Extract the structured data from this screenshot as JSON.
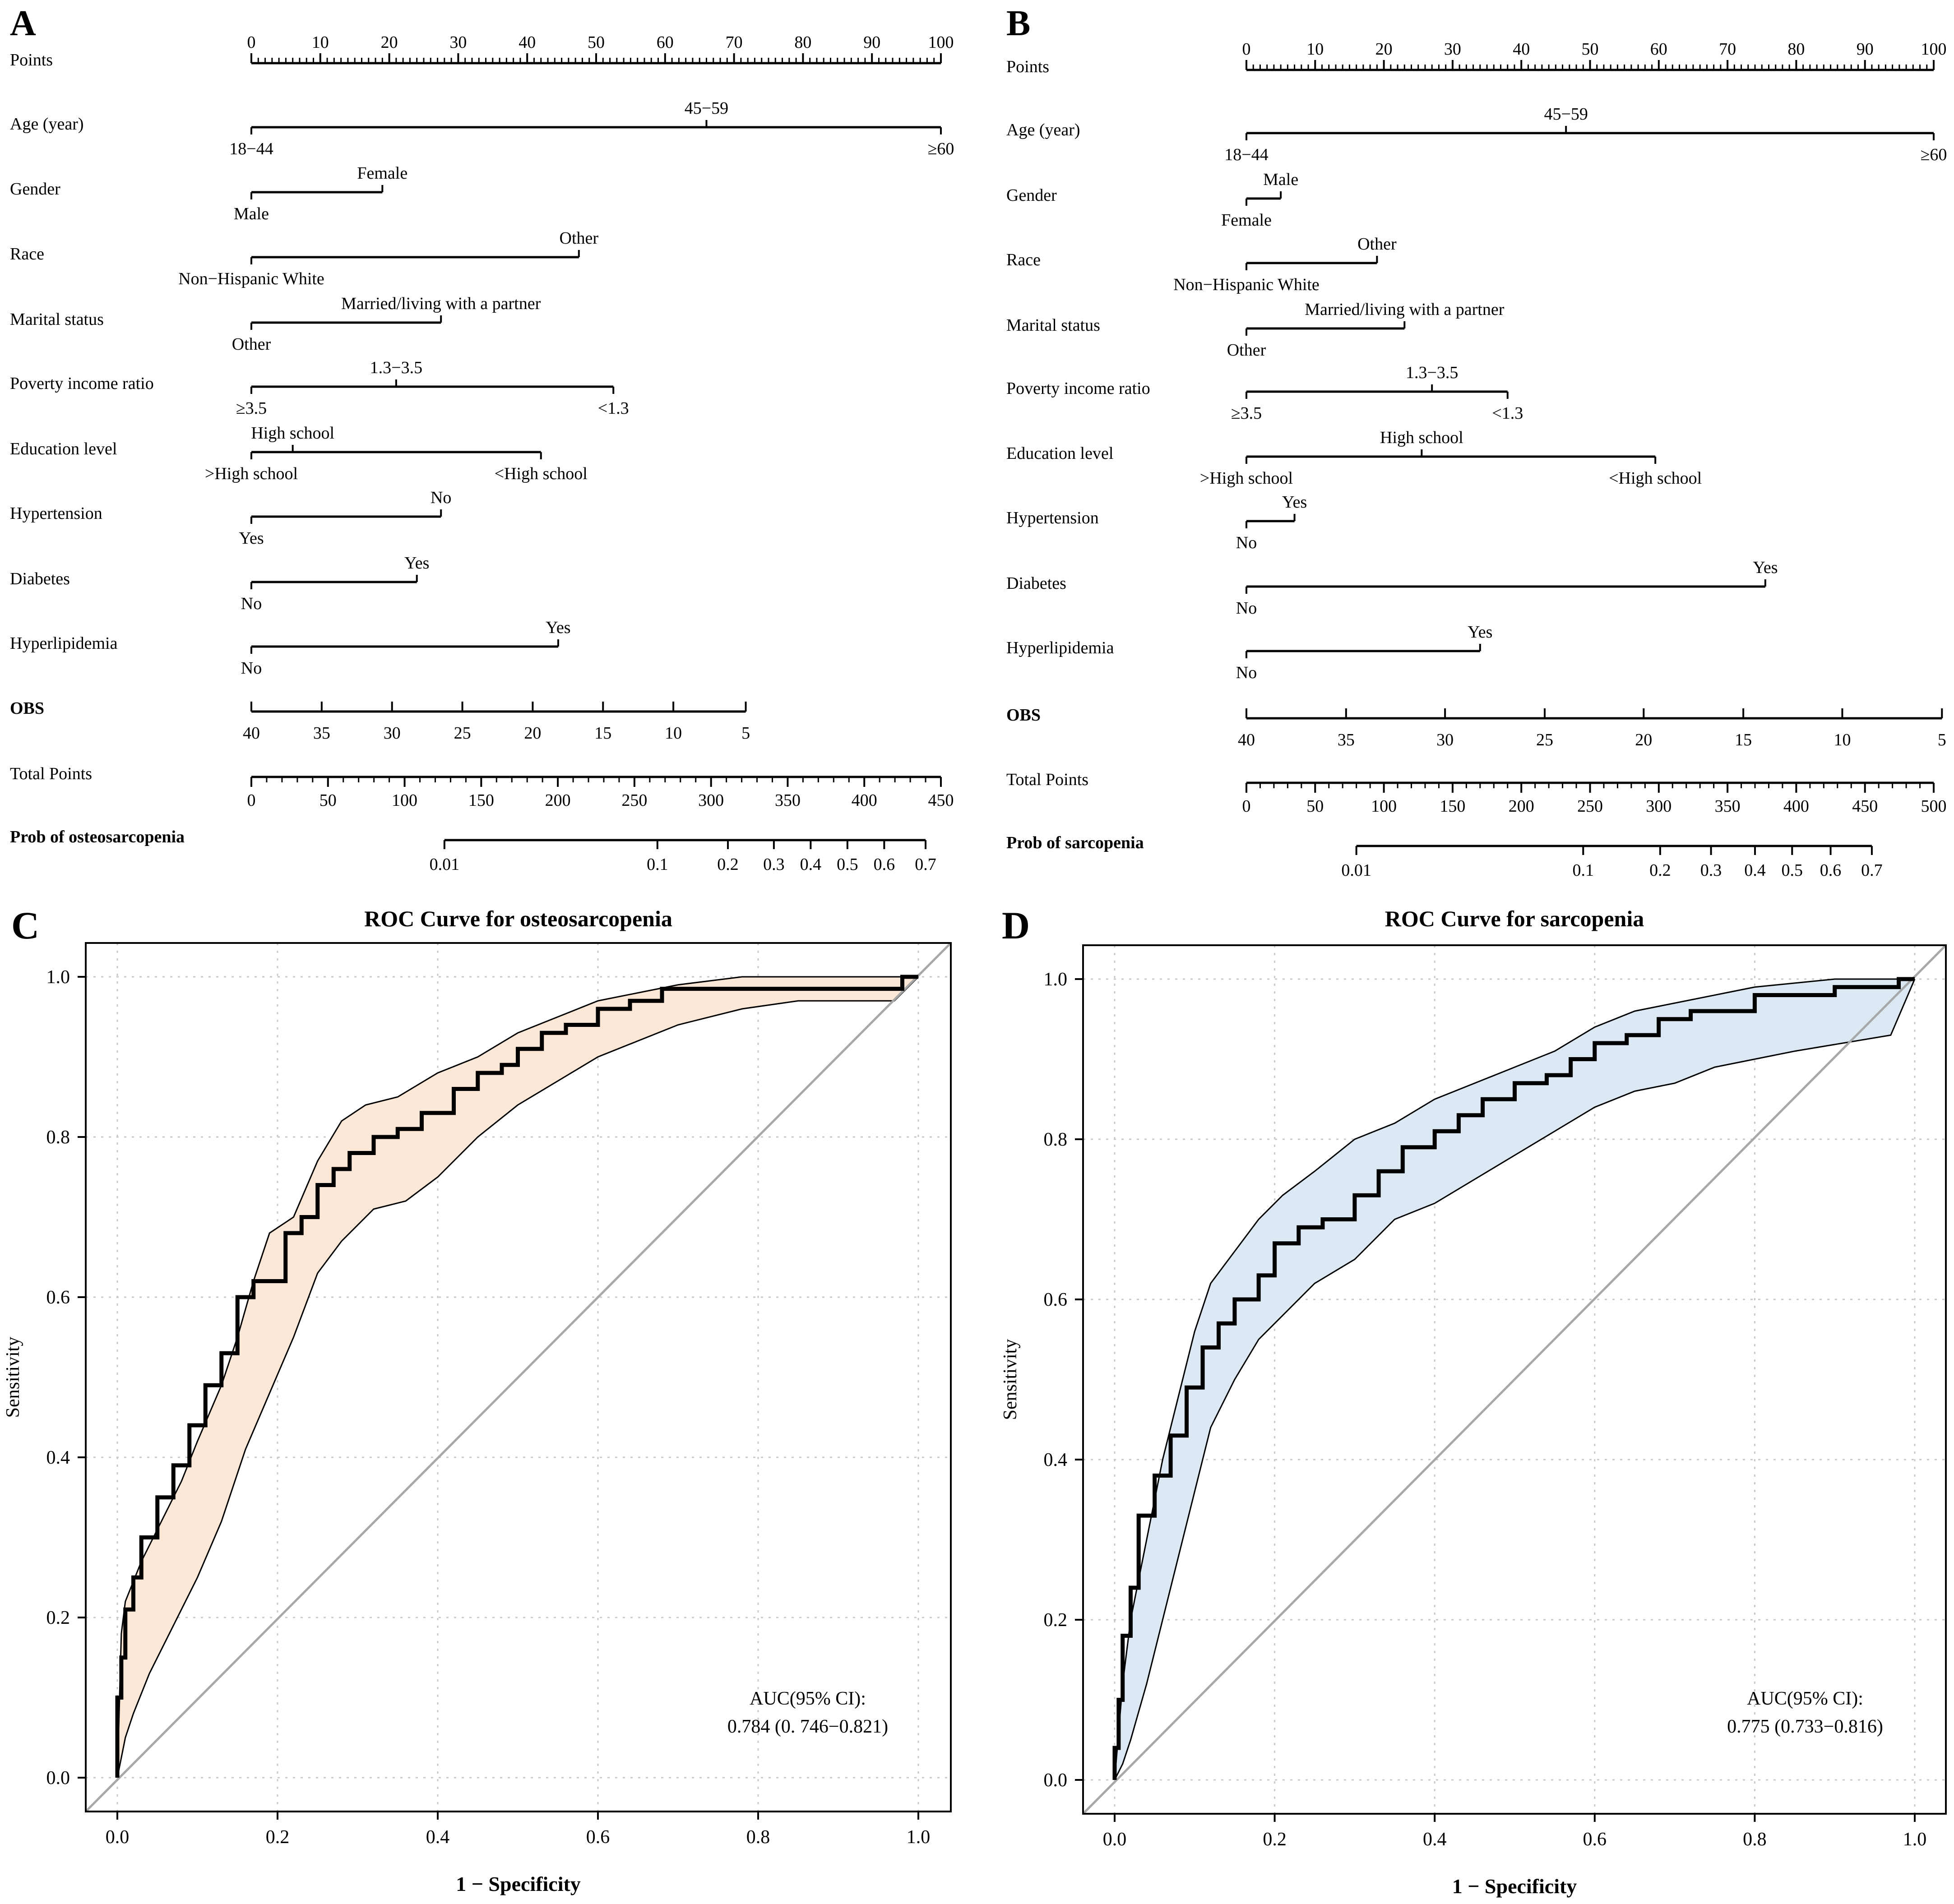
{
  "chart_data": [
    {
      "type": "nomogram",
      "panel_label": "A",
      "points_label": "Points",
      "points_scale": [
        0,
        10,
        20,
        30,
        40,
        50,
        60,
        70,
        80,
        90,
        100
      ],
      "variables": [
        {
          "label": "Age (year)",
          "levels": [
            {
              "text": "18−44",
              "points": 0,
              "side": "below"
            },
            {
              "text": "45−59",
              "points": 66,
              "side": "above"
            },
            {
              "text": "≥60",
              "points": 100,
              "side": "below"
            }
          ]
        },
        {
          "label": "Gender",
          "levels": [
            {
              "text": "Male",
              "points": 0,
              "side": "below"
            },
            {
              "text": "Female",
              "points": 19,
              "side": "above"
            }
          ]
        },
        {
          "label": "Race",
          "levels": [
            {
              "text": "Non−Hispanic White",
              "points": 0,
              "side": "below"
            },
            {
              "text": "Other",
              "points": 47.5,
              "side": "above"
            }
          ]
        },
        {
          "label": "Marital status",
          "levels": [
            {
              "text": "Other",
              "points": 0,
              "side": "below"
            },
            {
              "text": "Married/living with a partner",
              "points": 27.5,
              "side": "above"
            }
          ]
        },
        {
          "label": "Poverty income ratio",
          "levels": [
            {
              "text": "≥3.5",
              "points": 0,
              "side": "below"
            },
            {
              "text": "1.3−3.5",
              "points": 21,
              "side": "above"
            },
            {
              "text": "<1.3",
              "points": 52.5,
              "side": "below"
            }
          ]
        },
        {
          "label": "Education level",
          "levels": [
            {
              "text": ">High school",
              "points": 0,
              "side": "below"
            },
            {
              "text": "High school",
              "points": 6,
              "side": "above"
            },
            {
              "text": "<High school",
              "points": 42,
              "side": "below"
            }
          ]
        },
        {
          "label": "Hypertension",
          "levels": [
            {
              "text": "Yes",
              "points": 0,
              "side": "below"
            },
            {
              "text": "No",
              "points": 27.5,
              "side": "above"
            }
          ]
        },
        {
          "label": "Diabetes",
          "levels": [
            {
              "text": "No",
              "points": 0,
              "side": "below"
            },
            {
              "text": "Yes",
              "points": 24,
              "side": "above"
            }
          ]
        },
        {
          "label": "Hyperlipidemia",
          "levels": [
            {
              "text": "No",
              "points": 0,
              "side": "below"
            },
            {
              "text": "Yes",
              "points": 44.5,
              "side": "above"
            }
          ]
        },
        {
          "label": "OBS",
          "levels": [
            {
              "text": "40",
              "points": 0,
              "side": "below"
            },
            {
              "text": "35",
              "points": 10.2,
              "side": "below"
            },
            {
              "text": "30",
              "points": 20.4,
              "side": "below"
            },
            {
              "text": "25",
              "points": 30.6,
              "side": "below"
            },
            {
              "text": "20",
              "points": 40.8,
              "side": "below"
            },
            {
              "text": "15",
              "points": 51,
              "side": "below"
            },
            {
              "text": "10",
              "points": 61.2,
              "side": "below"
            },
            {
              "text": "5",
              "points": 71.7,
              "side": "below"
            }
          ]
        }
      ],
      "total_points_label": "Total Points",
      "total_points_scale": [
        0,
        50,
        100,
        150,
        200,
        250,
        300,
        350,
        400,
        450
      ],
      "total_points_max": 450,
      "prob_label": "Prob of osteosarcopenia",
      "prob_ticks": [
        {
          "text": "0.01",
          "total": 126
        },
        {
          "text": "0.1",
          "total": 265
        },
        {
          "text": "0.2",
          "total": 311
        },
        {
          "text": "0.3",
          "total": 341
        },
        {
          "text": "0.4",
          "total": 365
        },
        {
          "text": "0.5",
          "total": 389
        },
        {
          "text": "0.6",
          "total": 413
        },
        {
          "text": "0.7",
          "total": 440
        }
      ],
      "obs_color": "#1a6e8e",
      "prob_color": "#b52025"
    },
    {
      "type": "nomogram",
      "panel_label": "B",
      "points_label": "Points",
      "points_scale": [
        0,
        10,
        20,
        30,
        40,
        50,
        60,
        70,
        80,
        90,
        100
      ],
      "variables": [
        {
          "label": "Age (year)",
          "levels": [
            {
              "text": "18−44",
              "points": 0,
              "side": "below"
            },
            {
              "text": "45−59",
              "points": 46.5,
              "side": "above"
            },
            {
              "text": "≥60",
              "points": 100,
              "side": "below"
            }
          ]
        },
        {
          "label": "Gender",
          "levels": [
            {
              "text": "Female",
              "points": 0,
              "side": "below"
            },
            {
              "text": "Male",
              "points": 5,
              "side": "above"
            }
          ]
        },
        {
          "label": "Race",
          "levels": [
            {
              "text": "Non−Hispanic White",
              "points": 0,
              "side": "below"
            },
            {
              "text": "Other",
              "points": 19,
              "side": "above"
            }
          ]
        },
        {
          "label": "Marital status",
          "levels": [
            {
              "text": "Other",
              "points": 0,
              "side": "below"
            },
            {
              "text": "Married/living with a partner",
              "points": 23,
              "side": "above"
            }
          ]
        },
        {
          "label": "Poverty income ratio",
          "levels": [
            {
              "text": "≥3.5",
              "points": 0,
              "side": "below"
            },
            {
              "text": "1.3−3.5",
              "points": 27,
              "side": "above"
            },
            {
              "text": "<1.3",
              "points": 38,
              "side": "below"
            }
          ]
        },
        {
          "label": "Education level",
          "levels": [
            {
              "text": ">High school",
              "points": 0,
              "side": "below"
            },
            {
              "text": "High school",
              "points": 25.5,
              "side": "above"
            },
            {
              "text": "<High school",
              "points": 59.5,
              "side": "below"
            }
          ]
        },
        {
          "label": "Hypertension",
          "levels": [
            {
              "text": "No",
              "points": 0,
              "side": "below"
            },
            {
              "text": "Yes",
              "points": 7,
              "side": "above"
            }
          ]
        },
        {
          "label": "Diabetes",
          "levels": [
            {
              "text": "No",
              "points": 0,
              "side": "below"
            },
            {
              "text": "Yes",
              "points": 75.5,
              "side": "above"
            }
          ]
        },
        {
          "label": "Hyperlipidemia",
          "levels": [
            {
              "text": "No",
              "points": 0,
              "side": "below"
            },
            {
              "text": "Yes",
              "points": 34,
              "side": "above"
            }
          ]
        },
        {
          "label": "OBS",
          "levels": [
            {
              "text": "40",
              "points": 0,
              "side": "below"
            },
            {
              "text": "35",
              "points": 14.5,
              "side": "below"
            },
            {
              "text": "30",
              "points": 28.9,
              "side": "below"
            },
            {
              "text": "25",
              "points": 43.4,
              "side": "below"
            },
            {
              "text": "20",
              "points": 57.8,
              "side": "below"
            },
            {
              "text": "15",
              "points": 72.3,
              "side": "below"
            },
            {
              "text": "10",
              "points": 86.7,
              "side": "below"
            },
            {
              "text": "5",
              "points": 101.2,
              "side": "below"
            }
          ]
        }
      ],
      "total_points_label": "Total Points",
      "total_points_scale": [
        0,
        50,
        100,
        150,
        200,
        250,
        300,
        350,
        400,
        450,
        500
      ],
      "total_points_max": 500,
      "prob_label": "Prob of sarcopenia",
      "prob_ticks": [
        {
          "text": "0.01",
          "total": 80
        },
        {
          "text": "0.1",
          "total": 245
        },
        {
          "text": "0.2",
          "total": 301
        },
        {
          "text": "0.3",
          "total": 338
        },
        {
          "text": "0.4",
          "total": 370
        },
        {
          "text": "0.5",
          "total": 397
        },
        {
          "text": "0.6",
          "total": 425
        },
        {
          "text": "0.7",
          "total": 455
        }
      ],
      "obs_color": "#1a6e8e",
      "prob_color": "#b52025"
    },
    {
      "type": "line",
      "panel_label": "C",
      "title": "ROC Curve for osteosarcopenia",
      "xlabel": "1 − Specificity",
      "ylabel": "Sensitivity",
      "xlim": [
        0,
        1
      ],
      "ylim": [
        0,
        1
      ],
      "xticks": [
        "0.0",
        "0.2",
        "0.4",
        "0.6",
        "0.8",
        "1.0"
      ],
      "yticks": [
        "0.0",
        "0.2",
        "0.4",
        "0.6",
        "0.8",
        "1.0"
      ],
      "grid": true,
      "band_color": "#fde8d7",
      "series": [
        {
          "name": "ROC",
          "x": [
            0,
            0.005,
            0.01,
            0.02,
            0.03,
            0.05,
            0.07,
            0.09,
            0.11,
            0.13,
            0.15,
            0.17,
            0.19,
            0.21,
            0.23,
            0.25,
            0.27,
            0.29,
            0.32,
            0.35,
            0.38,
            0.42,
            0.45,
            0.48,
            0.5,
            0.53,
            0.56,
            0.6,
            0.64,
            0.68,
            0.72,
            0.78,
            0.85,
            0.98,
            1.0
          ],
          "y": [
            0,
            0.1,
            0.15,
            0.21,
            0.25,
            0.3,
            0.35,
            0.39,
            0.44,
            0.49,
            0.53,
            0.6,
            0.62,
            0.62,
            0.68,
            0.7,
            0.74,
            0.76,
            0.78,
            0.8,
            0.81,
            0.83,
            0.86,
            0.88,
            0.89,
            0.91,
            0.93,
            0.94,
            0.96,
            0.97,
            0.985,
            0.985,
            0.985,
            0.985,
            1.0
          ]
        },
        {
          "name": "Upper CI",
          "x": [
            0,
            0.005,
            0.01,
            0.03,
            0.05,
            0.08,
            0.1,
            0.13,
            0.15,
            0.17,
            0.19,
            0.22,
            0.25,
            0.28,
            0.31,
            0.35,
            0.4,
            0.45,
            0.5,
            0.55,
            0.6,
            0.65,
            0.7,
            0.78,
            0.9,
            1.0
          ],
          "y": [
            0,
            0.18,
            0.22,
            0.27,
            0.31,
            0.37,
            0.42,
            0.49,
            0.55,
            0.62,
            0.68,
            0.7,
            0.77,
            0.82,
            0.84,
            0.85,
            0.88,
            0.9,
            0.93,
            0.95,
            0.97,
            0.98,
            0.99,
            1.0,
            1.0,
            1.0
          ]
        },
        {
          "name": "Lower CI",
          "x": [
            0,
            0.01,
            0.02,
            0.04,
            0.07,
            0.1,
            0.13,
            0.16,
            0.19,
            0.22,
            0.25,
            0.28,
            0.32,
            0.36,
            0.4,
            0.45,
            0.5,
            0.55,
            0.6,
            0.65,
            0.7,
            0.78,
            0.85,
            0.97,
            1.0
          ],
          "y": [
            0,
            0.05,
            0.08,
            0.13,
            0.19,
            0.25,
            0.32,
            0.41,
            0.48,
            0.55,
            0.63,
            0.67,
            0.71,
            0.72,
            0.75,
            0.8,
            0.84,
            0.87,
            0.9,
            0.92,
            0.94,
            0.96,
            0.97,
            0.97,
            1.0
          ]
        },
        {
          "name": "Diagonal",
          "x": [
            0,
            1
          ],
          "y": [
            0,
            1
          ]
        }
      ],
      "annotation": [
        "AUC(95% CI):",
        "0.784 (0. 746−0.821)"
      ]
    },
    {
      "type": "line",
      "panel_label": "D",
      "title": "ROC Curve for sarcopenia",
      "xlabel": "1 − Specificity",
      "ylabel": "Sensitivity",
      "xlim": [
        0,
        1
      ],
      "ylim": [
        0,
        1
      ],
      "xticks": [
        "0.0",
        "0.2",
        "0.4",
        "0.6",
        "0.8",
        "1.0"
      ],
      "yticks": [
        "0.0",
        "0.2",
        "0.4",
        "0.6",
        "0.8",
        "1.0"
      ],
      "grid": true,
      "band_color": "#dce9f4",
      "series": [
        {
          "name": "ROC",
          "x": [
            0,
            0.005,
            0.01,
            0.02,
            0.03,
            0.05,
            0.07,
            0.09,
            0.11,
            0.13,
            0.15,
            0.18,
            0.2,
            0.23,
            0.26,
            0.3,
            0.33,
            0.36,
            0.4,
            0.43,
            0.46,
            0.5,
            0.54,
            0.57,
            0.6,
            0.64,
            0.68,
            0.72,
            0.8,
            0.9,
            0.98,
            1.0
          ],
          "y": [
            0,
            0.04,
            0.1,
            0.18,
            0.24,
            0.33,
            0.38,
            0.43,
            0.49,
            0.54,
            0.57,
            0.6,
            0.63,
            0.67,
            0.69,
            0.7,
            0.73,
            0.76,
            0.79,
            0.81,
            0.83,
            0.85,
            0.87,
            0.88,
            0.9,
            0.92,
            0.93,
            0.95,
            0.96,
            0.98,
            0.99,
            1.0
          ]
        },
        {
          "name": "Upper CI",
          "x": [
            0,
            0.01,
            0.02,
            0.04,
            0.06,
            0.08,
            0.1,
            0.12,
            0.15,
            0.18,
            0.21,
            0.25,
            0.3,
            0.35,
            0.4,
            0.45,
            0.5,
            0.55,
            0.6,
            0.65,
            0.7,
            0.8,
            0.9,
            1.0
          ],
          "y": [
            0,
            0.12,
            0.2,
            0.3,
            0.4,
            0.48,
            0.56,
            0.62,
            0.66,
            0.7,
            0.73,
            0.76,
            0.8,
            0.82,
            0.85,
            0.87,
            0.89,
            0.91,
            0.94,
            0.96,
            0.97,
            0.99,
            1.0,
            1.0
          ]
        },
        {
          "name": "Lower CI",
          "x": [
            0,
            0.01,
            0.02,
            0.04,
            0.06,
            0.08,
            0.1,
            0.12,
            0.15,
            0.18,
            0.21,
            0.25,
            0.3,
            0.35,
            0.4,
            0.45,
            0.5,
            0.55,
            0.6,
            0.65,
            0.7,
            0.75,
            0.85,
            0.97,
            1.0
          ],
          "y": [
            0,
            0.02,
            0.05,
            0.12,
            0.2,
            0.28,
            0.36,
            0.44,
            0.5,
            0.55,
            0.58,
            0.62,
            0.65,
            0.7,
            0.72,
            0.75,
            0.78,
            0.81,
            0.84,
            0.86,
            0.87,
            0.89,
            0.91,
            0.93,
            1.0
          ]
        },
        {
          "name": "Diagonal",
          "x": [
            0,
            1
          ],
          "y": [
            0,
            1
          ]
        }
      ],
      "annotation": [
        "AUC(95% CI):",
        "0.775 (0.733−0.816)"
      ]
    }
  ]
}
